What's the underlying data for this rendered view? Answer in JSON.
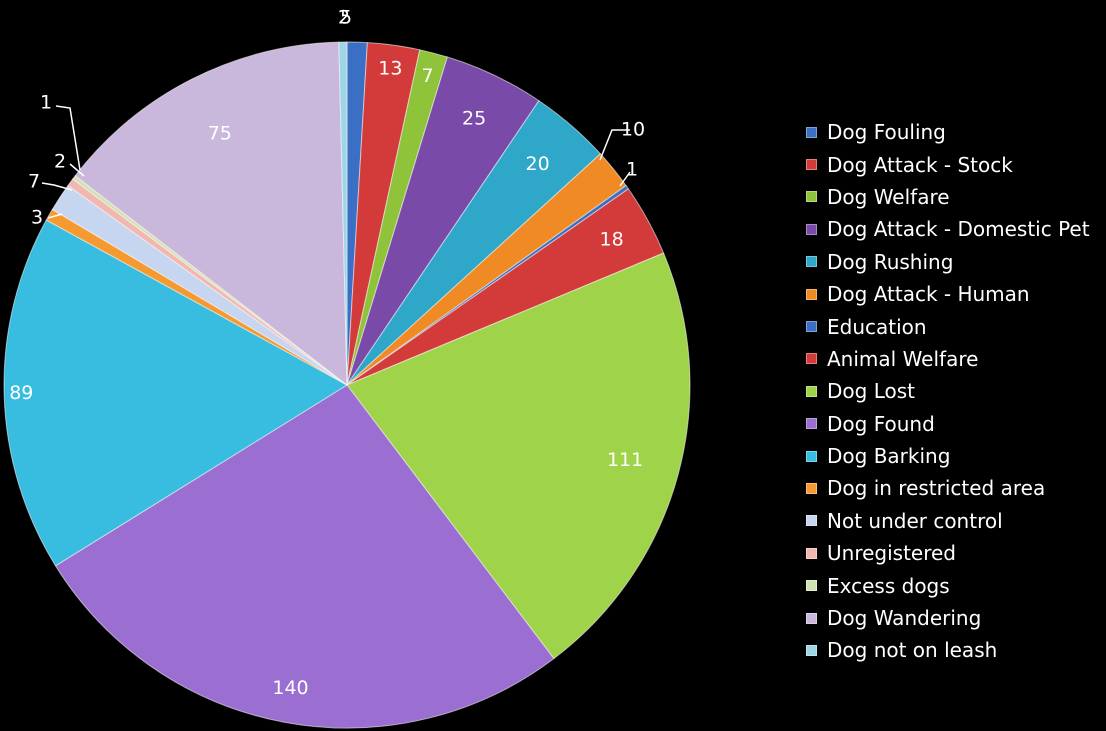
{
  "chart_data": {
    "type": "pie",
    "legend_position": "right",
    "categories": [
      "Dog Fouling",
      "Dog Attack - Stock",
      "Dog Welfare",
      "Dog Attack - Domestic Pet",
      "Dog Rushing",
      "Dog Attack - Human",
      "Education",
      "Animal Welfare",
      "Dog Lost",
      "Dog Found",
      "Dog Barking",
      "Dog in restricted area",
      "Not under control",
      "Unregistered",
      "Excess dogs",
      "Dog Wandering",
      "Dog not on leash"
    ],
    "values": [
      5,
      13,
      7,
      25,
      20,
      10,
      1,
      18,
      111,
      140,
      89,
      3,
      7,
      2,
      1,
      75,
      2
    ],
    "colors": [
      "#3a6fc4",
      "#d33a3a",
      "#8fc33a",
      "#7a4aa8",
      "#2fa7c8",
      "#f08a24",
      "#3a6fc4",
      "#d33a3a",
      "#9fd34a",
      "#9b6ed1",
      "#38bde0",
      "#f59a30",
      "#c7d6f0",
      "#f2b7b0",
      "#d2e3b2",
      "#c9b8dc",
      "#9fd6e6"
    ]
  }
}
